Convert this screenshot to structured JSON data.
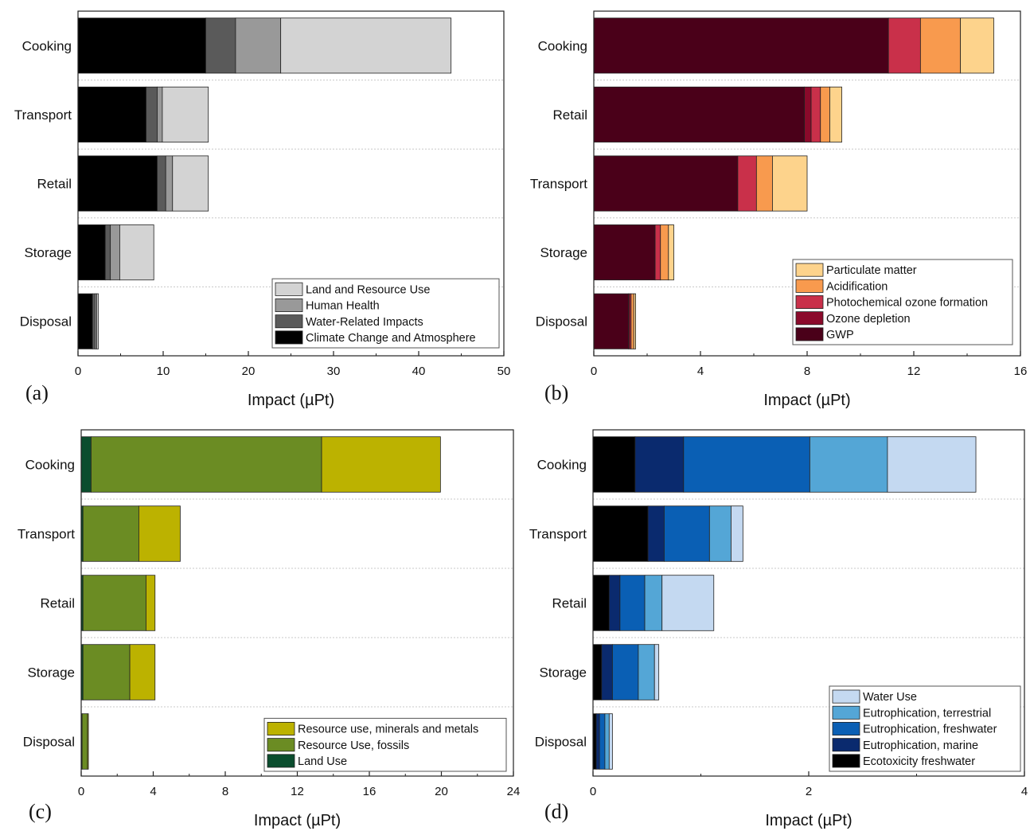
{
  "figure": {
    "panel_labels": [
      "(a)",
      "(b)",
      "(c)",
      "(d)"
    ]
  },
  "chart_data": [
    {
      "type": "bar",
      "orientation": "horizontal",
      "stacked": true,
      "panel": "(a)",
      "xlabel": "Impact (µPt)",
      "xlim": [
        0,
        50
      ],
      "xticks": [
        0,
        10,
        20,
        30,
        40,
        50
      ],
      "categories": [
        "Cooking",
        "Transport",
        "Retail",
        "Storage",
        "Disposal"
      ],
      "legend_position": "bottom-right",
      "series": [
        {
          "name": "Climate Change and Atmosphere",
          "color": "#000000",
          "values": [
            15.0,
            8.0,
            9.3,
            3.2,
            1.7
          ]
        },
        {
          "name": "Water-Related Impacts",
          "color": "#5a5a5a",
          "values": [
            3.5,
            1.3,
            1.0,
            0.6,
            0.3
          ]
        },
        {
          "name": "Human Health",
          "color": "#999999",
          "values": [
            5.3,
            0.6,
            0.8,
            1.1,
            0.2
          ]
        },
        {
          "name": "Land and Resource Use",
          "color": "#d3d3d3",
          "values": [
            20.0,
            5.4,
            4.2,
            4.0,
            0.2
          ]
        }
      ]
    },
    {
      "type": "bar",
      "orientation": "horizontal",
      "stacked": true,
      "panel": "(b)",
      "xlabel": "Impact (µPt)",
      "xlim": [
        0,
        16
      ],
      "xticks": [
        0,
        4,
        8,
        12,
        16
      ],
      "categories": [
        "Cooking",
        "Retail",
        "Transport",
        "Storage",
        "Disposal"
      ],
      "legend_position": "bottom-right",
      "series": [
        {
          "name": "GWP",
          "color": "#4a0019",
          "values": [
            11.05,
            7.9,
            5.4,
            2.3,
            1.3
          ]
        },
        {
          "name": "Ozone depletion",
          "color": "#8b0a2b",
          "values": [
            0.0,
            0.25,
            0.0,
            0.0,
            0.05
          ]
        },
        {
          "name": "Photochemical ozone formation",
          "color": "#c9304a",
          "values": [
            1.2,
            0.35,
            0.7,
            0.2,
            0.05
          ]
        },
        {
          "name": "Acidification",
          "color": "#f89a4e",
          "values": [
            1.5,
            0.35,
            0.6,
            0.3,
            0.1
          ]
        },
        {
          "name": "Particulate matter",
          "color": "#fdd38c",
          "values": [
            1.25,
            0.45,
            1.3,
            0.2,
            0.07
          ]
        }
      ]
    },
    {
      "type": "bar",
      "orientation": "horizontal",
      "stacked": true,
      "panel": "(c)",
      "xlabel": "Impact (µPt)",
      "xlim": [
        0,
        24
      ],
      "xticks": [
        0,
        4,
        8,
        12,
        16,
        20,
        24
      ],
      "categories": [
        "Cooking",
        "Transport",
        "Retail",
        "Storage",
        "Disposal"
      ],
      "legend_position": "bottom-right",
      "series": [
        {
          "name": "Land Use",
          "color": "#0b4d2e",
          "values": [
            0.55,
            0.1,
            0.1,
            0.1,
            0.05
          ]
        },
        {
          "name": "Resource Use, fossils",
          "color": "#6b8c23",
          "values": [
            12.8,
            3.1,
            3.5,
            2.6,
            0.3
          ]
        },
        {
          "name": "Resource use, minerals and metals",
          "color": "#bcb200",
          "values": [
            6.6,
            2.3,
            0.5,
            1.4,
            0.05
          ]
        }
      ]
    },
    {
      "type": "bar",
      "orientation": "horizontal",
      "stacked": true,
      "panel": "(d)",
      "xlabel": "Impact (µPt)",
      "xlim": [
        0,
        4
      ],
      "xticks": [
        0,
        2,
        4
      ],
      "categories": [
        "Cooking",
        "Transport",
        "Retail",
        "Storage",
        "Disposal"
      ],
      "legend_position": "bottom-right",
      "series": [
        {
          "name": "Ecotoxicity freshwater",
          "color": "#000000",
          "values": [
            0.39,
            0.51,
            0.15,
            0.08,
            0.03
          ]
        },
        {
          "name": "Eutrophication, marine",
          "color": "#0a2a6e",
          "values": [
            0.45,
            0.15,
            0.1,
            0.1,
            0.03
          ]
        },
        {
          "name": "Eutrophication, freshwater",
          "color": "#0a5fb4",
          "values": [
            1.17,
            0.42,
            0.23,
            0.24,
            0.05
          ]
        },
        {
          "name": "Eutrophication, terrestrial",
          "color": "#54a6d6",
          "values": [
            0.72,
            0.2,
            0.16,
            0.15,
            0.04
          ]
        },
        {
          "name": "Water Use",
          "color": "#c4d9f1",
          "values": [
            0.82,
            0.11,
            0.48,
            0.04,
            0.03
          ]
        }
      ]
    }
  ]
}
